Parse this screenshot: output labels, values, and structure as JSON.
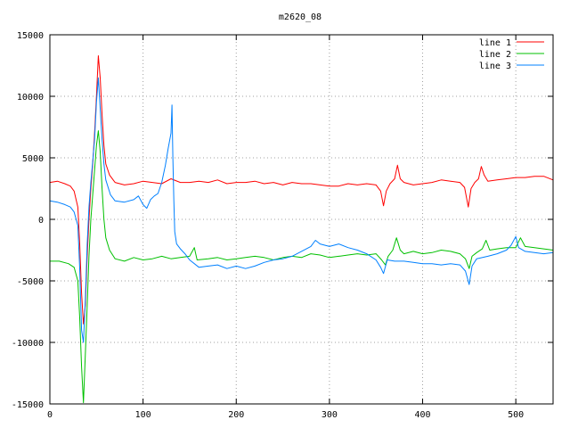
{
  "chart_data": {
    "type": "line",
    "title": "m2620_08",
    "xlabel": "",
    "ylabel": "",
    "xlim": [
      0,
      540
    ],
    "ylim": [
      -15000,
      15000
    ],
    "x_ticks": [
      0,
      100,
      200,
      300,
      400,
      500
    ],
    "y_ticks": [
      -15000,
      -10000,
      -5000,
      0,
      5000,
      10000,
      15000
    ],
    "grid": true,
    "legend_position": "top-right",
    "series": [
      {
        "name": "line 1",
        "color": "#ff0000",
        "points": [
          [
            0,
            3000
          ],
          [
            8,
            3100
          ],
          [
            16,
            2900
          ],
          [
            22,
            2700
          ],
          [
            26,
            2300
          ],
          [
            30,
            1000
          ],
          [
            32,
            -2000
          ],
          [
            34,
            -6000
          ],
          [
            36,
            -8500
          ],
          [
            38,
            -7000
          ],
          [
            40,
            -3000
          ],
          [
            42,
            0
          ],
          [
            44,
            2500
          ],
          [
            46,
            4500
          ],
          [
            48,
            7000
          ],
          [
            50,
            10000
          ],
          [
            52,
            13300
          ],
          [
            54,
            11500
          ],
          [
            56,
            8500
          ],
          [
            58,
            6000
          ],
          [
            60,
            4500
          ],
          [
            64,
            3600
          ],
          [
            70,
            3000
          ],
          [
            80,
            2800
          ],
          [
            90,
            2900
          ],
          [
            100,
            3100
          ],
          [
            110,
            3000
          ],
          [
            120,
            2900
          ],
          [
            130,
            3300
          ],
          [
            140,
            3000
          ],
          [
            150,
            3000
          ],
          [
            160,
            3100
          ],
          [
            170,
            3000
          ],
          [
            180,
            3200
          ],
          [
            190,
            2900
          ],
          [
            200,
            3000
          ],
          [
            210,
            3000
          ],
          [
            220,
            3100
          ],
          [
            230,
            2900
          ],
          [
            240,
            3000
          ],
          [
            250,
            2800
          ],
          [
            260,
            3000
          ],
          [
            270,
            2900
          ],
          [
            280,
            2900
          ],
          [
            290,
            2800
          ],
          [
            300,
            2700
          ],
          [
            310,
            2700
          ],
          [
            320,
            2900
          ],
          [
            330,
            2800
          ],
          [
            340,
            2900
          ],
          [
            350,
            2800
          ],
          [
            355,
            2300
          ],
          [
            358,
            1100
          ],
          [
            361,
            2300
          ],
          [
            365,
            2900
          ],
          [
            370,
            3300
          ],
          [
            373,
            4400
          ],
          [
            376,
            3300
          ],
          [
            380,
            3000
          ],
          [
            390,
            2800
          ],
          [
            400,
            2900
          ],
          [
            410,
            3000
          ],
          [
            420,
            3200
          ],
          [
            430,
            3100
          ],
          [
            440,
            3000
          ],
          [
            445,
            2600
          ],
          [
            449,
            1000
          ],
          [
            452,
            2500
          ],
          [
            456,
            3000
          ],
          [
            460,
            3300
          ],
          [
            463,
            4300
          ],
          [
            466,
            3600
          ],
          [
            470,
            3100
          ],
          [
            480,
            3200
          ],
          [
            490,
            3300
          ],
          [
            500,
            3400
          ],
          [
            510,
            3400
          ],
          [
            520,
            3500
          ],
          [
            530,
            3500
          ],
          [
            540,
            3200
          ]
        ]
      },
      {
        "name": "line 2",
        "color": "#00c000",
        "points": [
          [
            0,
            -3400
          ],
          [
            10,
            -3400
          ],
          [
            20,
            -3600
          ],
          [
            26,
            -3900
          ],
          [
            30,
            -5000
          ],
          [
            32,
            -8000
          ],
          [
            34,
            -12000
          ],
          [
            36,
            -14900
          ],
          [
            38,
            -11000
          ],
          [
            40,
            -7000
          ],
          [
            42,
            -3000
          ],
          [
            44,
            0
          ],
          [
            46,
            2000
          ],
          [
            48,
            4000
          ],
          [
            50,
            6000
          ],
          [
            52,
            7200
          ],
          [
            54,
            5500
          ],
          [
            56,
            2500
          ],
          [
            58,
            0
          ],
          [
            60,
            -1500
          ],
          [
            64,
            -2500
          ],
          [
            70,
            -3200
          ],
          [
            80,
            -3400
          ],
          [
            90,
            -3100
          ],
          [
            100,
            -3300
          ],
          [
            110,
            -3200
          ],
          [
            120,
            -3000
          ],
          [
            130,
            -3200
          ],
          [
            140,
            -3100
          ],
          [
            150,
            -3000
          ],
          [
            155,
            -2300
          ],
          [
            158,
            -3300
          ],
          [
            170,
            -3200
          ],
          [
            180,
            -3100
          ],
          [
            190,
            -3300
          ],
          [
            200,
            -3200
          ],
          [
            210,
            -3100
          ],
          [
            220,
            -3000
          ],
          [
            230,
            -3100
          ],
          [
            240,
            -3300
          ],
          [
            250,
            -3100
          ],
          [
            260,
            -3000
          ],
          [
            270,
            -3100
          ],
          [
            280,
            -2800
          ],
          [
            290,
            -2900
          ],
          [
            300,
            -3100
          ],
          [
            310,
            -3000
          ],
          [
            320,
            -2900
          ],
          [
            330,
            -2800
          ],
          [
            340,
            -2900
          ],
          [
            350,
            -2800
          ],
          [
            356,
            -3300
          ],
          [
            360,
            -3700
          ],
          [
            363,
            -3000
          ],
          [
            368,
            -2500
          ],
          [
            372,
            -1500
          ],
          [
            376,
            -2500
          ],
          [
            380,
            -2800
          ],
          [
            390,
            -2600
          ],
          [
            400,
            -2800
          ],
          [
            410,
            -2700
          ],
          [
            420,
            -2500
          ],
          [
            430,
            -2600
          ],
          [
            440,
            -2800
          ],
          [
            446,
            -3200
          ],
          [
            450,
            -4000
          ],
          [
            453,
            -3000
          ],
          [
            458,
            -2700
          ],
          [
            464,
            -2400
          ],
          [
            468,
            -1700
          ],
          [
            472,
            -2500
          ],
          [
            480,
            -2400
          ],
          [
            490,
            -2300
          ],
          [
            500,
            -2300
          ],
          [
            505,
            -1500
          ],
          [
            510,
            -2200
          ],
          [
            520,
            -2300
          ],
          [
            530,
            -2400
          ],
          [
            540,
            -2500
          ]
        ]
      },
      {
        "name": "line 3",
        "color": "#0080ff",
        "points": [
          [
            0,
            1500
          ],
          [
            8,
            1400
          ],
          [
            16,
            1200
          ],
          [
            22,
            1000
          ],
          [
            26,
            600
          ],
          [
            30,
            -500
          ],
          [
            32,
            -4000
          ],
          [
            34,
            -9000
          ],
          [
            36,
            -10000
          ],
          [
            38,
            -6500
          ],
          [
            40,
            -2000
          ],
          [
            42,
            1000
          ],
          [
            44,
            3000
          ],
          [
            46,
            4700
          ],
          [
            48,
            6500
          ],
          [
            50,
            9500
          ],
          [
            52,
            11500
          ],
          [
            54,
            9000
          ],
          [
            56,
            6500
          ],
          [
            58,
            4500
          ],
          [
            60,
            3200
          ],
          [
            65,
            2000
          ],
          [
            70,
            1500
          ],
          [
            80,
            1400
          ],
          [
            90,
            1600
          ],
          [
            95,
            1900
          ],
          [
            100,
            1200
          ],
          [
            104,
            900
          ],
          [
            108,
            1600
          ],
          [
            112,
            1900
          ],
          [
            116,
            2100
          ],
          [
            120,
            3000
          ],
          [
            124,
            4400
          ],
          [
            127,
            5800
          ],
          [
            130,
            7000
          ],
          [
            131,
            9300
          ],
          [
            132,
            5000
          ],
          [
            133,
            1500
          ],
          [
            134,
            -1000
          ],
          [
            136,
            -2000
          ],
          [
            140,
            -2400
          ],
          [
            145,
            -2800
          ],
          [
            150,
            -3300
          ],
          [
            160,
            -3900
          ],
          [
            170,
            -3800
          ],
          [
            180,
            -3700
          ],
          [
            190,
            -4000
          ],
          [
            200,
            -3800
          ],
          [
            210,
            -4000
          ],
          [
            220,
            -3800
          ],
          [
            230,
            -3500
          ],
          [
            240,
            -3300
          ],
          [
            250,
            -3200
          ],
          [
            260,
            -3000
          ],
          [
            270,
            -2600
          ],
          [
            280,
            -2200
          ],
          [
            285,
            -1700
          ],
          [
            290,
            -2000
          ],
          [
            300,
            -2200
          ],
          [
            310,
            -2000
          ],
          [
            320,
            -2300
          ],
          [
            330,
            -2500
          ],
          [
            340,
            -2800
          ],
          [
            350,
            -3300
          ],
          [
            355,
            -3900
          ],
          [
            358,
            -4400
          ],
          [
            362,
            -3300
          ],
          [
            370,
            -3400
          ],
          [
            380,
            -3400
          ],
          [
            390,
            -3500
          ],
          [
            400,
            -3600
          ],
          [
            410,
            -3600
          ],
          [
            420,
            -3700
          ],
          [
            430,
            -3600
          ],
          [
            440,
            -3700
          ],
          [
            446,
            -4200
          ],
          [
            450,
            -5300
          ],
          [
            453,
            -3800
          ],
          [
            458,
            -3200
          ],
          [
            470,
            -3000
          ],
          [
            480,
            -2800
          ],
          [
            490,
            -2500
          ],
          [
            495,
            -2100
          ],
          [
            500,
            -1400
          ],
          [
            503,
            -2300
          ],
          [
            510,
            -2600
          ],
          [
            520,
            -2700
          ],
          [
            530,
            -2800
          ],
          [
            540,
            -2700
          ]
        ]
      }
    ]
  }
}
